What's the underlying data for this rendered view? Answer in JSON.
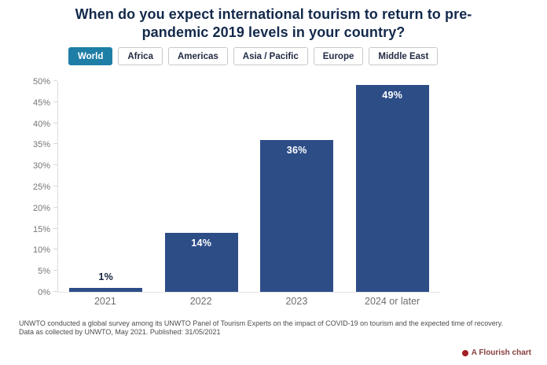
{
  "header": {
    "title_line1": "When do you expect international tourism to return to pre-",
    "title_line2": "pandemic 2019 levels in your country?"
  },
  "tabs": [
    {
      "label": "World",
      "selected": true
    },
    {
      "label": "Africa",
      "selected": false
    },
    {
      "label": "Americas",
      "selected": false
    },
    {
      "label": "Asia / Pacific",
      "selected": false
    },
    {
      "label": "Europe",
      "selected": false
    },
    {
      "label": "Middle East",
      "selected": false
    }
  ],
  "chart_data": {
    "type": "bar",
    "title": "When do you expect international tourism to return to pre-pandemic 2019 levels in your country?",
    "categories": [
      "2021",
      "2022",
      "2023",
      "2024 or later"
    ],
    "values": [
      1,
      14,
      36,
      49
    ],
    "value_labels": [
      "1%",
      "14%",
      "36%",
      "49%"
    ],
    "xlabel": "",
    "ylabel": "",
    "ylim": [
      0,
      50
    ],
    "ytick_step": 5,
    "ytick_suffix": "%",
    "grid": false,
    "legend": "none",
    "bar_color": "#2d4d87"
  },
  "footer": {
    "note1": "UNWTO conducted a global survey among its UNWTO Panel of Tourism Experts on the impact of COVID-19 on tourism and the expected time of recovery.",
    "note2": "Data as collected by UNWTO, May 2021. Published: 31/05/2021"
  },
  "attribution": {
    "label": "A Flourish chart"
  },
  "colors": {
    "bar": "#2d4d87",
    "tab_selected_bg": "#1e7ea6",
    "title_text": "#13294b",
    "axis_text": "#767676",
    "value_label_inside": "#ffffff",
    "value_label_outside": "#16233f",
    "attribution_red": "#a31e22"
  }
}
